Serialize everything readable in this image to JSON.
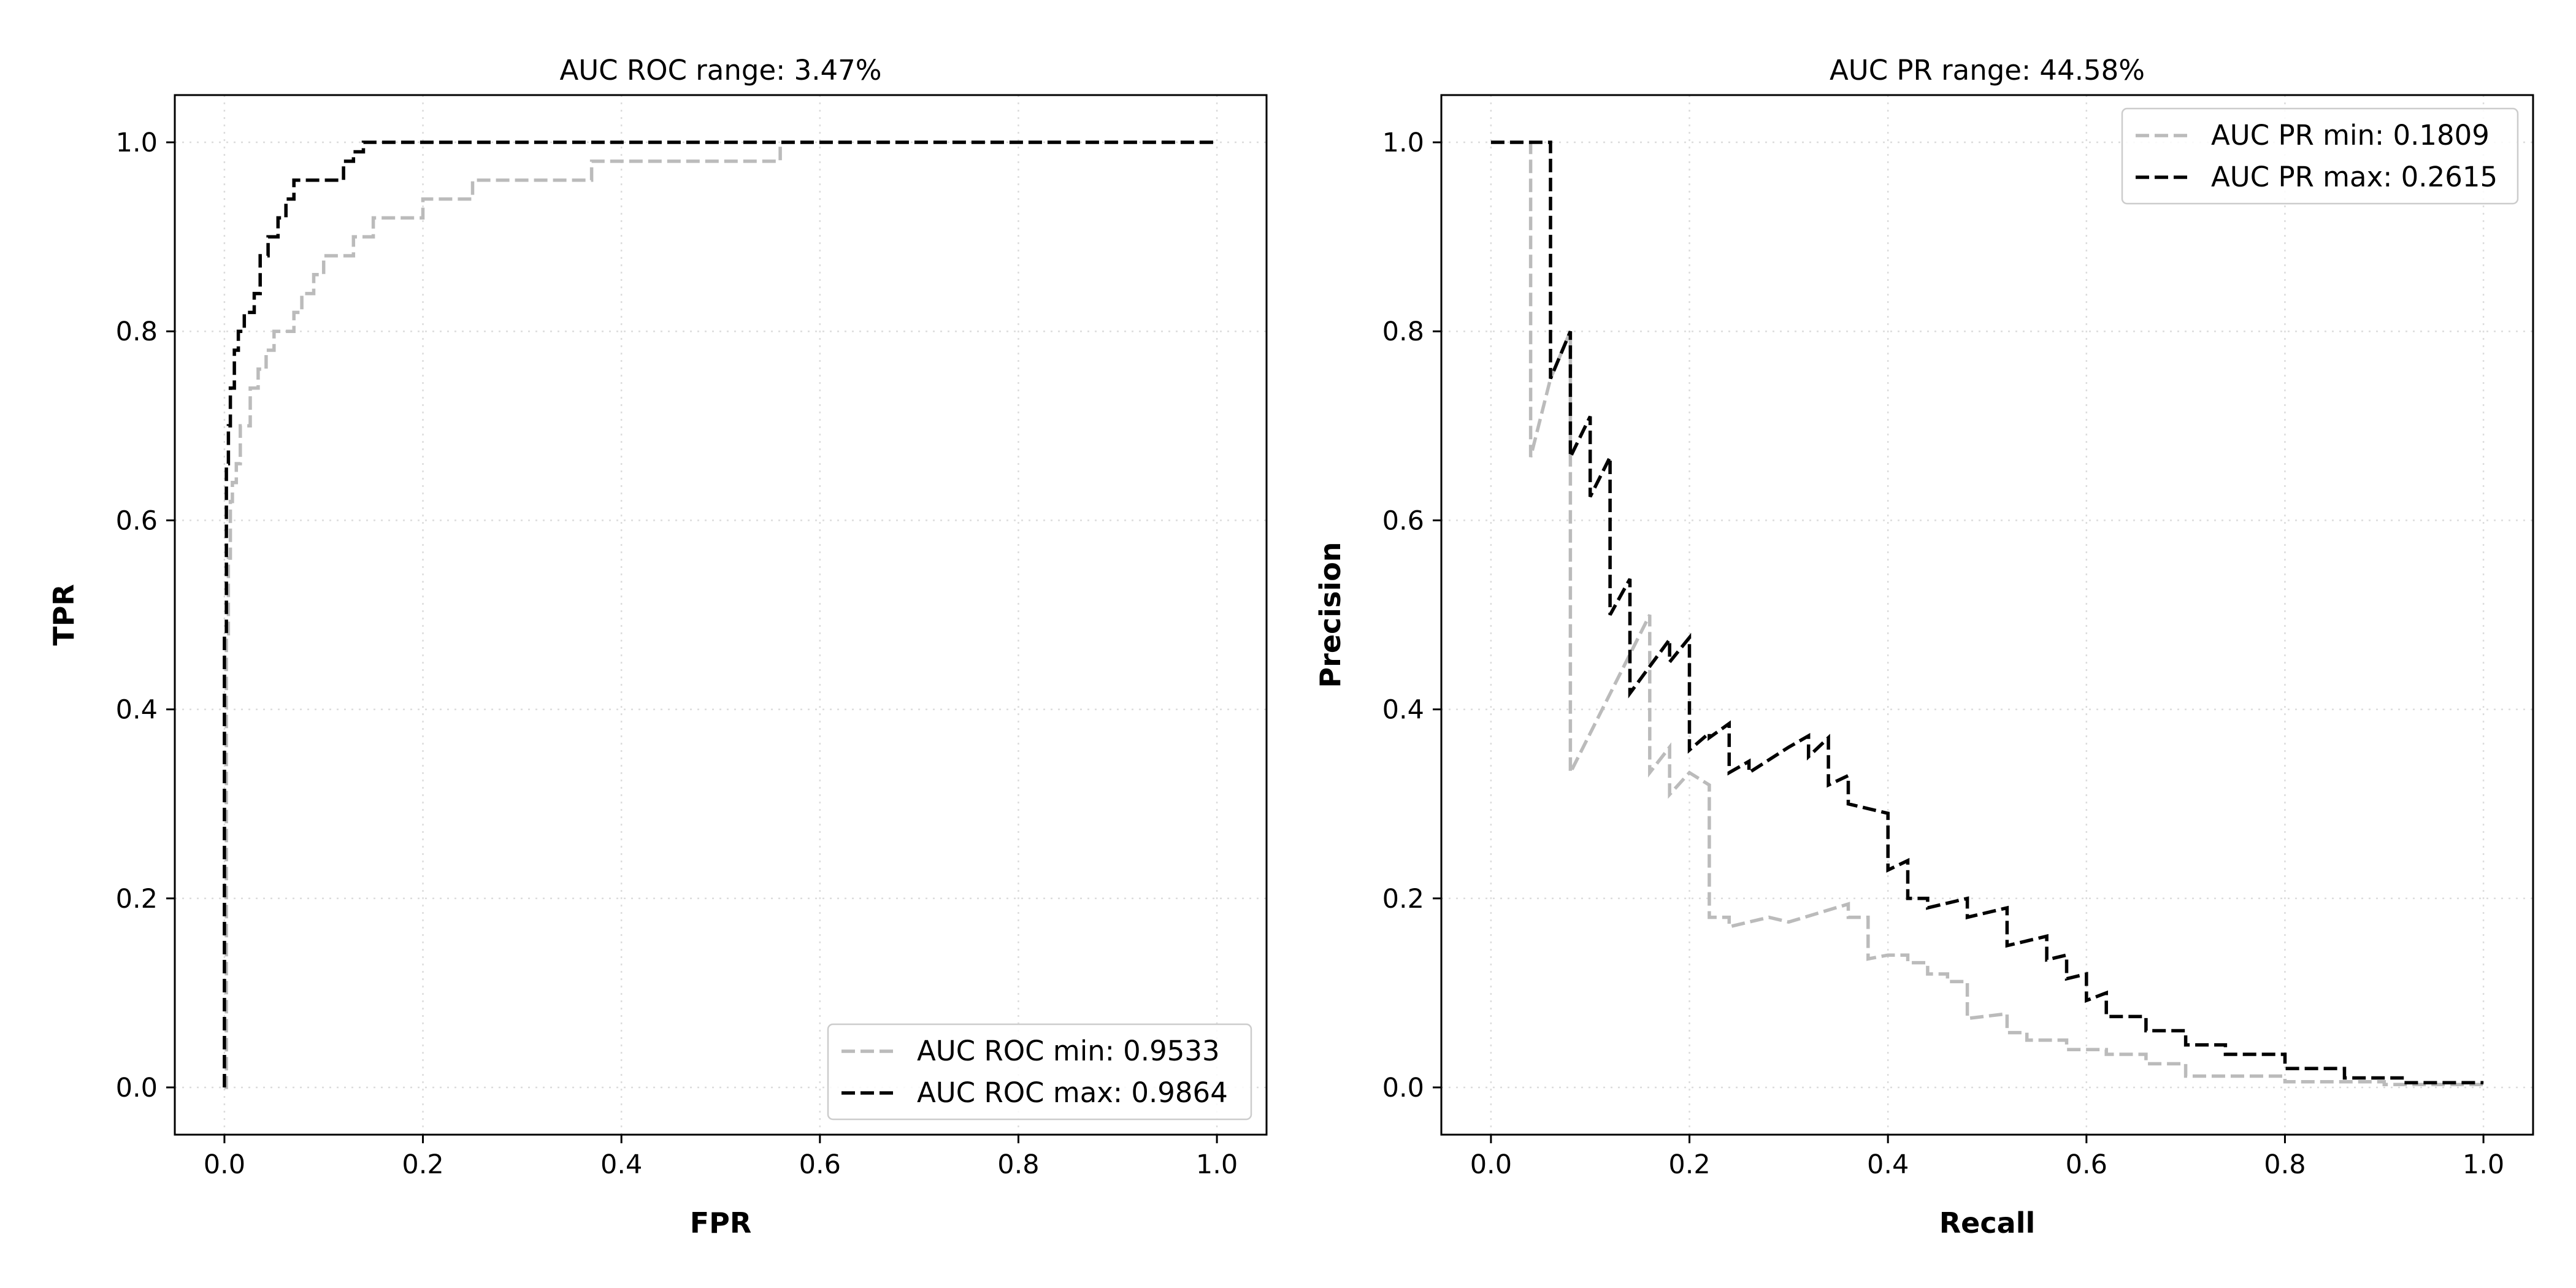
{
  "chart_data": [
    {
      "type": "line",
      "title": "AUC ROC range: 3.47%",
      "xlabel": "FPR",
      "ylabel": "TPR",
      "xlim": [
        -0.05,
        1.05
      ],
      "ylim": [
        -0.05,
        1.05
      ],
      "xticks": [
        "0.0",
        "0.2",
        "0.4",
        "0.6",
        "0.8",
        "1.0"
      ],
      "yticks": [
        "0.0",
        "0.2",
        "0.4",
        "0.6",
        "0.8",
        "1.0"
      ],
      "grid": true,
      "legend_position": "lower-right",
      "series": [
        {
          "name": "AUC ROC min: 0.9533",
          "color": "#bbbbbb",
          "style": "dashed",
          "x": [
            0.0,
            0.002,
            0.002,
            0.004,
            0.004,
            0.006,
            0.006,
            0.008,
            0.008,
            0.012,
            0.012,
            0.016,
            0.016,
            0.02,
            0.02,
            0.026,
            0.026,
            0.034,
            0.034,
            0.042,
            0.042,
            0.05,
            0.05,
            0.058,
            0.058,
            0.07,
            0.07,
            0.078,
            0.078,
            0.09,
            0.09,
            0.1,
            0.1,
            0.13,
            0.13,
            0.15,
            0.15,
            0.2,
            0.2,
            0.25,
            0.25,
            0.37,
            0.37,
            0.56,
            0.56,
            1.0
          ],
          "y": [
            0.0,
            0.0,
            0.48,
            0.48,
            0.56,
            0.56,
            0.62,
            0.62,
            0.64,
            0.64,
            0.66,
            0.66,
            0.7,
            0.7,
            0.7,
            0.7,
            0.74,
            0.74,
            0.76,
            0.76,
            0.78,
            0.78,
            0.8,
            0.8,
            0.8,
            0.8,
            0.82,
            0.82,
            0.84,
            0.84,
            0.86,
            0.86,
            0.88,
            0.88,
            0.9,
            0.9,
            0.92,
            0.92,
            0.94,
            0.94,
            0.96,
            0.96,
            0.98,
            0.98,
            1.0,
            1.0
          ]
        },
        {
          "name": "AUC ROC max: 0.9864",
          "color": "#000000",
          "style": "dashed",
          "x": [
            0.0,
            0.0,
            0.002,
            0.002,
            0.004,
            0.004,
            0.006,
            0.006,
            0.01,
            0.01,
            0.014,
            0.014,
            0.02,
            0.02,
            0.03,
            0.03,
            0.036,
            0.036,
            0.044,
            0.044,
            0.054,
            0.054,
            0.062,
            0.062,
            0.07,
            0.07,
            0.12,
            0.12,
            0.13,
            0.13,
            0.14,
            0.14,
            1.0
          ],
          "y": [
            0.0,
            0.48,
            0.48,
            0.66,
            0.66,
            0.7,
            0.7,
            0.74,
            0.74,
            0.78,
            0.78,
            0.8,
            0.8,
            0.82,
            0.82,
            0.84,
            0.84,
            0.88,
            0.88,
            0.9,
            0.9,
            0.92,
            0.92,
            0.94,
            0.94,
            0.96,
            0.96,
            0.98,
            0.98,
            0.99,
            0.99,
            1.0,
            1.0
          ]
        }
      ]
    },
    {
      "type": "line",
      "title": "AUC PR range: 44.58%",
      "xlabel": "Recall",
      "ylabel": "Precision",
      "xlim": [
        -0.05,
        1.05
      ],
      "ylim": [
        -0.05,
        1.05
      ],
      "xticks": [
        "0.0",
        "0.2",
        "0.4",
        "0.6",
        "0.8",
        "1.0"
      ],
      "yticks": [
        "0.0",
        "0.2",
        "0.4",
        "0.6",
        "0.8",
        "1.0"
      ],
      "grid": true,
      "legend_position": "upper-right",
      "series": [
        {
          "name": "AUC PR min: 0.1809",
          "color": "#bbbbbb",
          "style": "dashed",
          "x": [
            0.0,
            0.04,
            0.04,
            0.06,
            0.08,
            0.08,
            0.16,
            0.16,
            0.18,
            0.18,
            0.2,
            0.22,
            0.22,
            0.24,
            0.24,
            0.28,
            0.3,
            0.36,
            0.36,
            0.38,
            0.38,
            0.4,
            0.42,
            0.42,
            0.44,
            0.44,
            0.46,
            0.46,
            0.48,
            0.48,
            0.52,
            0.52,
            0.54,
            0.54,
            0.58,
            0.58,
            0.62,
            0.62,
            0.66,
            0.66,
            0.7,
            0.7,
            0.8,
            0.8,
            0.9,
            0.9,
            1.0
          ],
          "y": [
            1.0,
            1.0,
            0.667,
            0.75,
            0.8,
            0.333,
            0.5,
            0.333,
            0.36,
            0.31,
            0.333,
            0.32,
            0.18,
            0.18,
            0.17,
            0.18,
            0.175,
            0.194,
            0.18,
            0.18,
            0.136,
            0.14,
            0.14,
            0.132,
            0.132,
            0.12,
            0.12,
            0.112,
            0.112,
            0.073,
            0.078,
            0.058,
            0.058,
            0.05,
            0.05,
            0.04,
            0.04,
            0.035,
            0.035,
            0.025,
            0.025,
            0.012,
            0.012,
            0.006,
            0.006,
            0.003,
            0.003
          ]
        },
        {
          "name": "AUC PR max: 0.2615",
          "color": "#000000",
          "style": "dashed",
          "x": [
            0.0,
            0.06,
            0.06,
            0.08,
            0.08,
            0.1,
            0.1,
            0.12,
            0.12,
            0.14,
            0.14,
            0.18,
            0.18,
            0.2,
            0.2,
            0.22,
            0.22,
            0.24,
            0.24,
            0.26,
            0.26,
            0.3,
            0.32,
            0.32,
            0.34,
            0.34,
            0.36,
            0.36,
            0.4,
            0.4,
            0.42,
            0.42,
            0.44,
            0.44,
            0.48,
            0.48,
            0.52,
            0.52,
            0.56,
            0.56,
            0.58,
            0.58,
            0.6,
            0.6,
            0.62,
            0.62,
            0.66,
            0.66,
            0.7,
            0.7,
            0.74,
            0.74,
            0.8,
            0.8,
            0.86,
            0.86,
            0.92,
            0.92,
            1.0
          ],
          "y": [
            1.0,
            1.0,
            0.75,
            0.8,
            0.667,
            0.71,
            0.625,
            0.667,
            0.5,
            0.538,
            0.417,
            0.474,
            0.45,
            0.476,
            0.357,
            0.375,
            0.37,
            0.385,
            0.333,
            0.345,
            0.333,
            0.36,
            0.372,
            0.35,
            0.37,
            0.32,
            0.33,
            0.3,
            0.29,
            0.23,
            0.24,
            0.2,
            0.2,
            0.19,
            0.2,
            0.18,
            0.19,
            0.15,
            0.16,
            0.135,
            0.14,
            0.115,
            0.12,
            0.092,
            0.1,
            0.075,
            0.075,
            0.06,
            0.06,
            0.045,
            0.045,
            0.035,
            0.035,
            0.02,
            0.02,
            0.01,
            0.01,
            0.005,
            0.005
          ]
        }
      ]
    }
  ]
}
